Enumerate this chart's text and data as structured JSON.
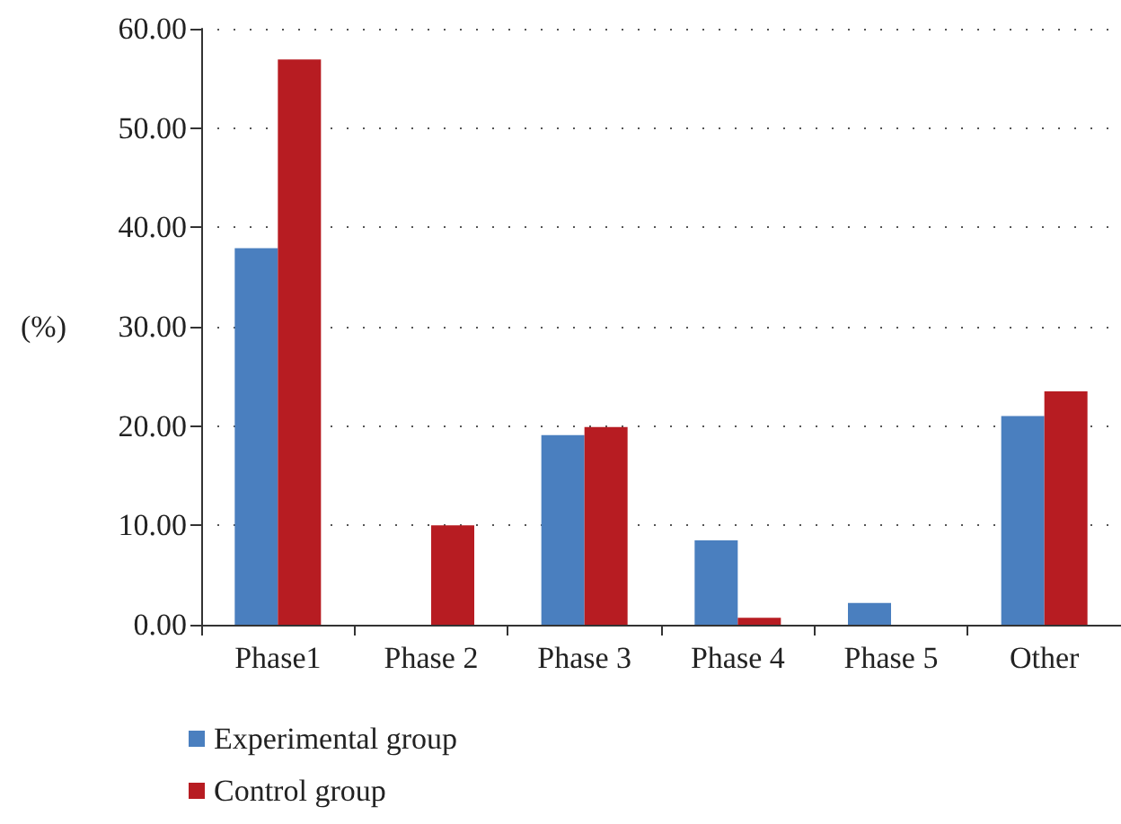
{
  "chart_data": {
    "type": "bar",
    "ylabel": "(%)",
    "categories": [
      "Phase1",
      "Phase 2",
      "Phase 3",
      "Phase 4",
      "Phase 5",
      "Other"
    ],
    "series": [
      {
        "name": "Experimental group",
        "color": "#4a7fbf",
        "values": [
          37.9,
          0,
          19.1,
          8.5,
          2.2,
          21.0
        ]
      },
      {
        "name": "Control group",
        "color": "#b71c22",
        "values": [
          56.9,
          10.0,
          19.9,
          0.7,
          0,
          23.5
        ]
      }
    ],
    "ylim": [
      0,
      60
    ],
    "yticks": [
      {
        "value": 0,
        "label": "0.00"
      },
      {
        "value": 10,
        "label": "10.00"
      },
      {
        "value": 20,
        "label": "20.00"
      },
      {
        "value": 30,
        "label": "30.00"
      },
      {
        "value": 40,
        "label": "40.00"
      },
      {
        "value": 50,
        "label": "50.00"
      },
      {
        "value": 60,
        "label": "60.00"
      }
    ],
    "grid": "y",
    "legend": "bottom left"
  }
}
